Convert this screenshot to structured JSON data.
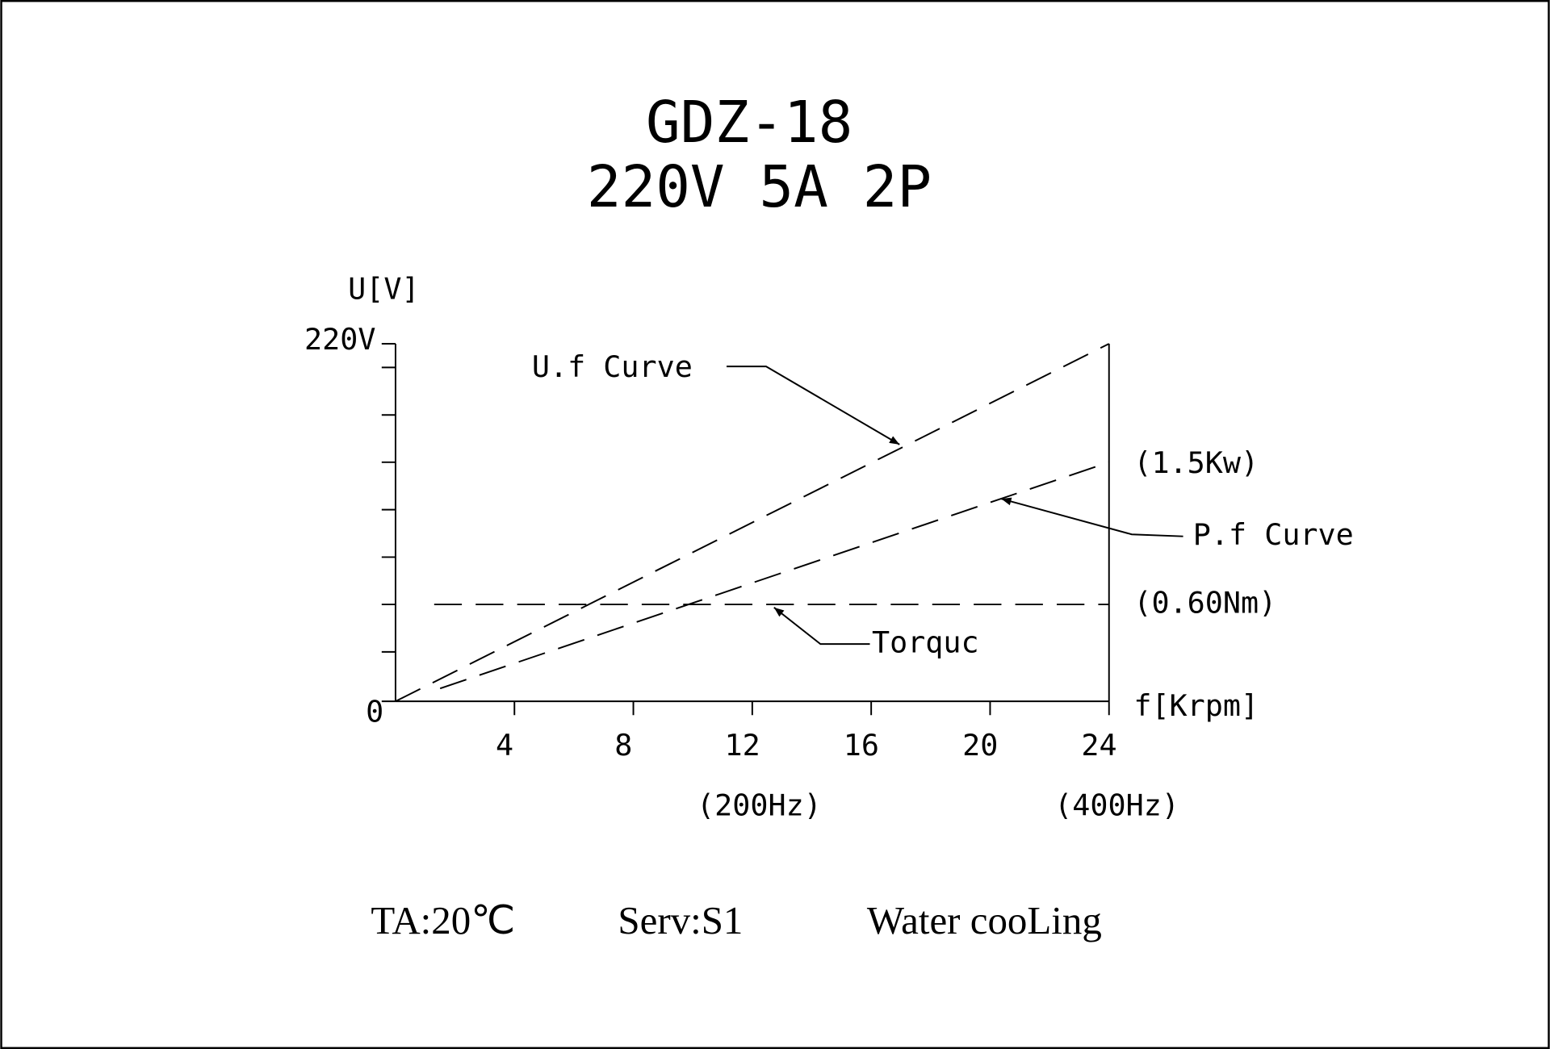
{
  "chart_data": {
    "type": "line",
    "title": "GDZ-18",
    "subtitle": "220V 5A 2P",
    "x_label": "f[Krpm]",
    "y_label": "U[V]",
    "xlim": [
      0,
      24
    ],
    "xticks": [
      4,
      8,
      12,
      16,
      20,
      24
    ],
    "ylim": [
      0,
      220
    ],
    "yticks": [
      0,
      {
        "value": 220,
        "label": "220V"
      }
    ],
    "y_minor_ticks": [
      30.4,
      59.6,
      88.7,
      117.9,
      147.1,
      176.2,
      205.4
    ],
    "line_style": "dashed",
    "series": [
      {
        "name": "U.f Curve",
        "color": "#000000",
        "x": [
          0,
          24
        ],
        "values": [
          0,
          220
        ]
      },
      {
        "name": "P.f Curve",
        "color": "#000000",
        "x": [
          1.5,
          24
        ],
        "values": [
          7.9,
          147.1
        ]
      },
      {
        "name": "Torquc",
        "color": "#000000",
        "x": [
          1.3,
          24
        ],
        "values": [
          59.6,
          59.6
        ]
      }
    ],
    "annotations": [
      "(1.5Kw)",
      "(0.60Nm)",
      "(200Hz)",
      "(400Hz)"
    ],
    "footer": [
      "TA:20℃",
      "Serv:S1",
      "Water cooLing"
    ]
  }
}
